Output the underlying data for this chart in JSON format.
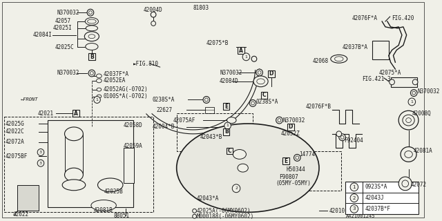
{
  "bg_color": "#f0f0e8",
  "line_color": "#1a1a1a",
  "diagram_id": "A421001245",
  "legend": [
    {
      "num": "1",
      "label": "0923S*A"
    },
    {
      "num": "2",
      "label": "42043J"
    },
    {
      "num": "3",
      "label": "42037B*F"
    }
  ]
}
